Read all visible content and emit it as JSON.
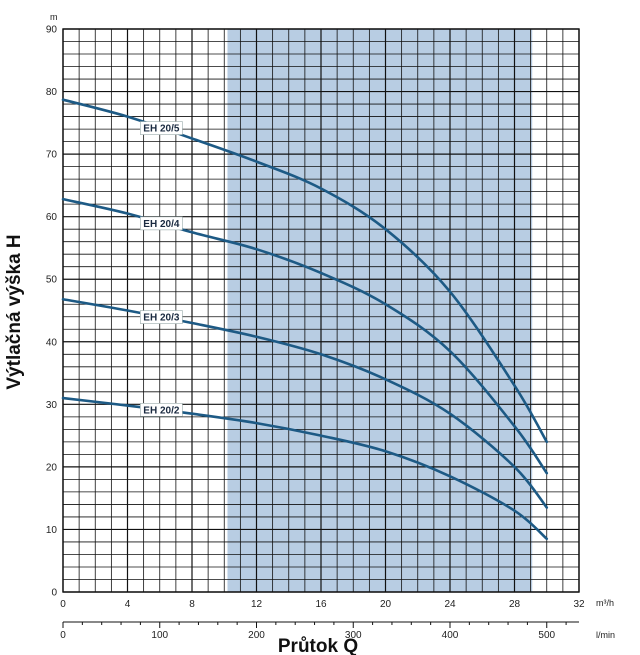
{
  "chart_data": {
    "type": "line",
    "ylabel": "Výtlačná výška H",
    "xlabel": "Průtok Q",
    "y_unit": "m",
    "x_unit_top": "m³/h",
    "x_unit_bottom": "l/min",
    "ylim": [
      0,
      90
    ],
    "xlim": [
      0,
      32
    ],
    "yticks": [
      0,
      10,
      20,
      30,
      40,
      50,
      60,
      70,
      80,
      90
    ],
    "xticks_m3h": [
      0,
      4,
      8,
      12,
      16,
      20,
      24,
      28,
      32
    ],
    "xticks_lmin": [
      0,
      100,
      200,
      300,
      400,
      500
    ],
    "grid": true,
    "shaded_range_m3h": [
      10.2,
      29.1
    ],
    "colors": {
      "curve": "#1d5a85",
      "shade": "#b8cde3",
      "grid": "#111111"
    },
    "series": [
      {
        "name": "EH 20/5",
        "x": [
          0,
          4,
          8,
          12,
          16,
          20,
          24,
          28,
          30
        ],
        "y": [
          78.7,
          76.0,
          72.5,
          68.8,
          64.5,
          58.0,
          48.0,
          33.0,
          24.0
        ]
      },
      {
        "name": "EH 20/4",
        "x": [
          0,
          4,
          8,
          12,
          16,
          20,
          24,
          28,
          30
        ],
        "y": [
          62.8,
          60.5,
          57.5,
          54.8,
          51.0,
          46.0,
          38.5,
          26.5,
          19.0
        ]
      },
      {
        "name": "EH 20/3",
        "x": [
          0,
          4,
          8,
          12,
          16,
          20,
          24,
          28,
          30
        ],
        "y": [
          46.8,
          45.0,
          43.0,
          40.8,
          38.0,
          34.0,
          28.5,
          20.0,
          13.5
        ]
      },
      {
        "name": "EH 20/2",
        "x": [
          0,
          4,
          8,
          12,
          16,
          20,
          24,
          28,
          30
        ],
        "y": [
          31.0,
          29.8,
          28.5,
          27.0,
          25.0,
          22.5,
          18.5,
          13.0,
          8.5
        ]
      }
    ]
  }
}
